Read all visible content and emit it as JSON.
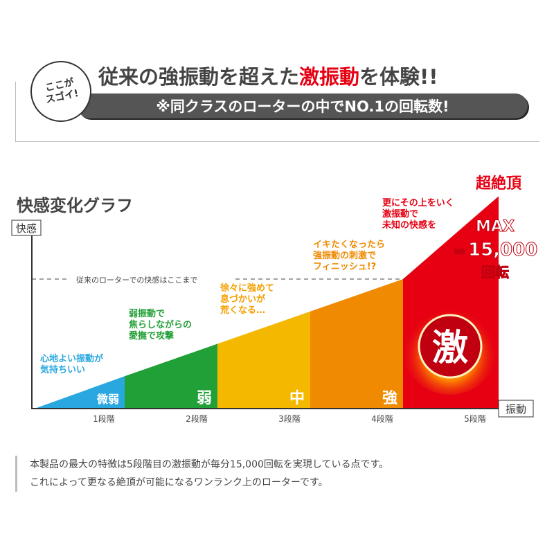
{
  "header": {
    "badge": [
      "ここが",
      "スゴイ!"
    ],
    "headline_pre": "従来の強振動を超えた",
    "headline_em": "激振動",
    "headline_post": "を体験!!",
    "subline": "※同クラスのローターの中でNO.1の回転数!"
  },
  "colors": {
    "accent": "#e60012",
    "stage1": "#29a8e0",
    "stage2": "#22a038",
    "stage3": "#f5b800",
    "stage4": "#f08a00",
    "stage5": "#e60012"
  },
  "chart_data": {
    "type": "area",
    "title": "快感変化グラフ",
    "ylabel": "快感",
    "xlabel": "振動",
    "categories": [
      "1段階",
      "2段階",
      "3段階",
      "4段階",
      "5段階"
    ],
    "segment_labels": [
      "微弱",
      "弱",
      "中",
      "強",
      "激"
    ],
    "values": [
      24,
      50,
      76,
      100,
      164
    ],
    "threshold": {
      "value": 100,
      "label": "従来のローターでの快感はここまで"
    },
    "annotations": [
      [
        "心地よい振動が",
        "気持ちいい"
      ],
      [
        "弱振動で",
        "焦らしながらの",
        "愛撫で攻撃"
      ],
      [
        "徐々に強めて",
        "息づかいが",
        "荒くなる…"
      ],
      [
        "イキたくなったら",
        "強振動の刺激で",
        "フィニッシュ!?"
      ],
      [
        "更にその上をいく",
        "激振動で",
        "未知の快感を"
      ]
    ],
    "peak_label": "超絶頂",
    "max": {
      "label": "MAX",
      "unit_prefix": "毎分",
      "value": "15,000",
      "unit": "回転"
    },
    "grid": false
  },
  "description": [
    "本製品の最大の特徴は5段階目の激振動が毎分15,000回転を実現している点です。",
    "これによって更なる絶頂が可能になるワンランク上のローターです。"
  ]
}
